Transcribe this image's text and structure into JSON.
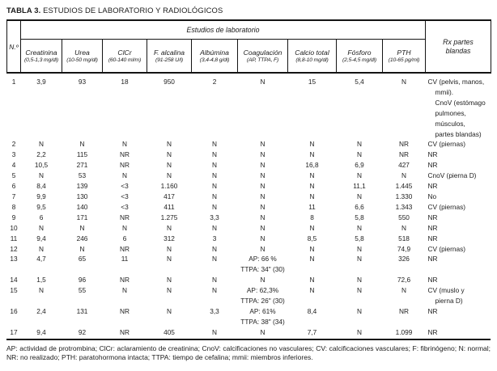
{
  "title": {
    "number": "TABLA 3.",
    "text": " ESTUDIOS DE LABORATORIO Y RADIOLÓGICOS"
  },
  "table": {
    "n_label": "N.º",
    "group_label": "Estudios de laboratorio",
    "rx_label": "Rx partes blandas",
    "columns": [
      {
        "label": "Creatinina",
        "range": "(0,5-1,3 mg/dl)"
      },
      {
        "label": "Urea",
        "range": "(10-50 mg/dl)"
      },
      {
        "label": "ClCr",
        "range": "(60-140 ml/m)"
      },
      {
        "label": "F. alcalina",
        "range": "(91-258 U/l)"
      },
      {
        "label": "Albúmina",
        "range": "(3,4-4,8 g/dl)"
      },
      {
        "label": "Coagulación",
        "range": "(AP, TTPA, F)"
      },
      {
        "label": "Calcio total",
        "range": "(8,8-10 mg/dl)"
      },
      {
        "label": "Fósforo",
        "range": "(2,5-4,5 mg/dl)"
      },
      {
        "label": "PTH",
        "range": "(10-65 pg/ml)"
      }
    ],
    "col_keys": [
      "n",
      "creatinina",
      "urea",
      "clcr",
      "f-alcalina",
      "albumina",
      "coagulacion",
      "calcio-total",
      "fosforo",
      "pth",
      "rx-partes-blandas"
    ],
    "rows": [
      [
        "1",
        "3,9",
        "93",
        "18",
        "950",
        "2",
        "N",
        "15",
        "5,4",
        "N",
        "CV (pelvis, manos,\nmmii).\nCnoV (estómago\npulmones,\nmúsculos,\npartes blandas)"
      ],
      [
        "2",
        "N",
        "N",
        "N",
        "N",
        "N",
        "N",
        "N",
        "N",
        "NR",
        "CV (piernas)"
      ],
      [
        "3",
        "2,2",
        "115",
        "NR",
        "N",
        "N",
        "N",
        "N",
        "N",
        "NR",
        "NR"
      ],
      [
        "4",
        "10,5",
        "271",
        "NR",
        "N",
        "N",
        "N",
        "16,8",
        "6,9",
        "427",
        "NR"
      ],
      [
        "5",
        "N",
        "53",
        "N",
        "N",
        "N",
        "N",
        "N",
        "N",
        "N",
        "CnoV (pierna D)"
      ],
      [
        "6",
        "8,4",
        "139",
        "<3",
        "1.160",
        "N",
        "N",
        "N",
        "11,1",
        "1.445",
        "NR"
      ],
      [
        "7",
        "9,9",
        "130",
        "<3",
        "417",
        "N",
        "N",
        "N",
        "N",
        "1.330",
        "No"
      ],
      [
        "8",
        "9,5",
        "140",
        "<3",
        "411",
        "N",
        "N",
        "11",
        "6,6",
        "1.343",
        "CV (piernas)"
      ],
      [
        "9",
        "6",
        "171",
        "NR",
        "1.275",
        "3,3",
        "N",
        "8",
        "5,8",
        "550",
        "NR"
      ],
      [
        "10",
        "N",
        "N",
        "N",
        "N",
        "N",
        "N",
        "N",
        "N",
        "N",
        "NR"
      ],
      [
        "11",
        "9,4",
        "246",
        "6",
        "312",
        "3",
        "N",
        "8,5",
        "5,8",
        "518",
        "NR"
      ],
      [
        "12",
        "N",
        "N",
        "NR",
        "N",
        "N",
        "N",
        "N",
        "N",
        "74,9",
        "CV (piernas)"
      ],
      [
        "13",
        "4,7",
        "65",
        "11",
        "N",
        "N",
        "AP: 66 %\nTTPA: 34\" (30)",
        "N",
        "N",
        "326",
        "NR"
      ],
      [
        "14",
        "1,5",
        "96",
        "NR",
        "N",
        "N",
        "N",
        "N",
        "N",
        "72,6",
        "NR"
      ],
      [
        "15",
        "N",
        "55",
        "N",
        "N",
        "N",
        "AP: 62,3%\nTTPA: 26\" (30)",
        "N",
        "N",
        "N",
        "CV (muslo y\npierna D)"
      ],
      [
        "16",
        "2,4",
        "131",
        "NR",
        "N",
        "3,3",
        "AP: 61%\nTTPA: 38\" (34)",
        "8,4",
        "N",
        "NR",
        "NR"
      ],
      [
        "17",
        "9,4",
        "92",
        "NR",
        "405",
        "N",
        "N",
        "7,7",
        "N",
        "1.099",
        "NR"
      ]
    ]
  },
  "footnote": "AP: actividad de protrombina; ClCr: aclaramiento de creatinina; CnoV: calcificaciones no vasculares; CV: calcificaciones vasculares; F: fibrinógeno; N: normal; NR: no realizado; PTH: paratohormona intacta; TTPA: tiempo de cefalina; mmii: miembros inferiores."
}
